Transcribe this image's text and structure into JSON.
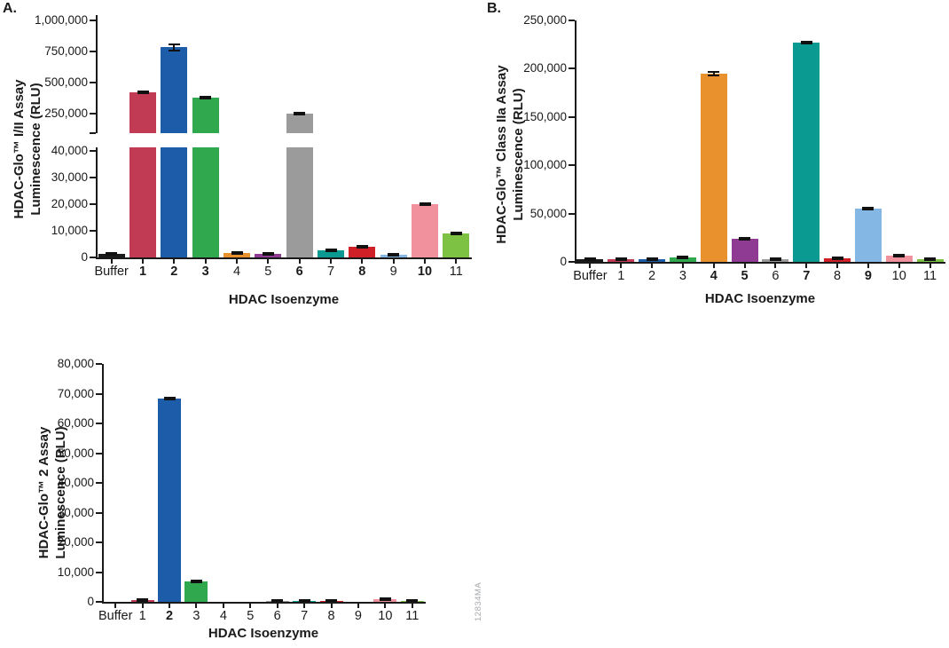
{
  "figure": {
    "watermark": "12834MA"
  },
  "chart_data": [
    {
      "id": "panel-a",
      "panel": "A.",
      "type": "bar",
      "title": "",
      "ylabel": "HDAC-Glo™ I/II Assay Luminescence (RLU)",
      "ylabel_lines": [
        "HDAC-Glo™ I/II Assay",
        "Luminescence (RLU)"
      ],
      "xlabel": "HDAC Isoenzyme",
      "grid": false,
      "legend": "none",
      "categories": [
        "Buffer",
        "1",
        "2",
        "3",
        "4",
        "5",
        "6",
        "7",
        "8",
        "9",
        "10",
        "11"
      ],
      "bold_categories": [
        "1",
        "2",
        "3",
        "6",
        "8",
        "10"
      ],
      "values": [
        1200,
        420000,
        780000,
        375000,
        1500,
        1300,
        245000,
        2500,
        4000,
        900,
        20000,
        9000
      ],
      "errors": [
        150,
        15000,
        30000,
        5000,
        300,
        100,
        5000,
        300,
        300,
        100,
        500,
        400
      ],
      "bar_colors": [
        "#1a1a1a",
        "#c23b55",
        "#1c5ca8",
        "#2fa84e",
        "#e8912d",
        "#8f3b94",
        "#9b9b9b",
        "#0a9a92",
        "#cf2027",
        "#85b7e4",
        "#f0919d",
        "#7dc243"
      ],
      "y_axis_segments": [
        {
          "min": 90000,
          "max": 1040000,
          "ticks": [
            250000,
            500000,
            750000,
            1000000
          ],
          "break_tick": true
        },
        {
          "min": 0,
          "max": 41300,
          "ticks": [
            0,
            10000,
            20000,
            30000,
            40000
          ]
        }
      ]
    },
    {
      "id": "panel-b",
      "panel": "B.",
      "type": "bar",
      "title": "",
      "ylabel": "HDAC-Glo™ Class IIa Assay Luminescence (RLU)",
      "ylabel_lines": [
        "HDAC-Glo™ Class IIa Assay",
        "Luminescence (RLU)"
      ],
      "xlabel": "HDAC Isoenzyme",
      "grid": false,
      "legend": "none",
      "categories": [
        "Buffer",
        "1",
        "2",
        "3",
        "4",
        "5",
        "6",
        "7",
        "8",
        "9",
        "10",
        "11"
      ],
      "bold_categories": [
        "4",
        "5",
        "7",
        "9"
      ],
      "values": [
        2500,
        2800,
        2800,
        4600,
        195000,
        23500,
        2800,
        227000,
        3800,
        55000,
        6500,
        2800
      ],
      "errors": [
        400,
        500,
        250,
        300,
        2800,
        900,
        500,
        1500,
        500,
        1200,
        900,
        300
      ],
      "bar_colors": [
        "#1a1a1a",
        "#c23b55",
        "#1c5ca8",
        "#2fa84e",
        "#e8912d",
        "#8f3b94",
        "#9b9b9b",
        "#0a9a92",
        "#cf2027",
        "#85b7e4",
        "#f0919d",
        "#7dc243"
      ],
      "y_axis_segments": [
        {
          "min": 0,
          "max": 250000,
          "ticks": [
            0,
            50000,
            100000,
            150000,
            200000,
            250000
          ]
        }
      ]
    },
    {
      "id": "panel-c",
      "panel": "",
      "type": "bar",
      "title": "",
      "ylabel": "HDAC-Glo™ 2 Assay Luminescence (RLU)",
      "ylabel_lines": [
        "HDAC-Glo™ 2 Assay",
        "Luminescence (RLU)"
      ],
      "xlabel": "HDAC Isoenzyme",
      "grid": false,
      "legend": "none",
      "categories": [
        "Buffer",
        "1",
        "2",
        "3",
        "4",
        "5",
        "6",
        "7",
        "8",
        "9",
        "10",
        "11"
      ],
      "bold_categories": [
        "2"
      ],
      "values": [
        0,
        700,
        68500,
        7000,
        0,
        0,
        150,
        250,
        300,
        0,
        900,
        250
      ],
      "errors": [
        0,
        100,
        500,
        250,
        0,
        0,
        50,
        80,
        120,
        0,
        280,
        80
      ],
      "bar_colors": [
        "#1a1a1a",
        "#c23b55",
        "#1c5ca8",
        "#2fa84e",
        "#e8912d",
        "#8f3b94",
        "#9b9b9b",
        "#0a9a92",
        "#cf2027",
        "#85b7e4",
        "#f0919d",
        "#7dc243"
      ],
      "y_axis_segments": [
        {
          "min": 0,
          "max": 80000,
          "ticks": [
            0,
            10000,
            20000,
            30000,
            40000,
            50000,
            60000,
            70000,
            80000
          ]
        }
      ]
    }
  ]
}
